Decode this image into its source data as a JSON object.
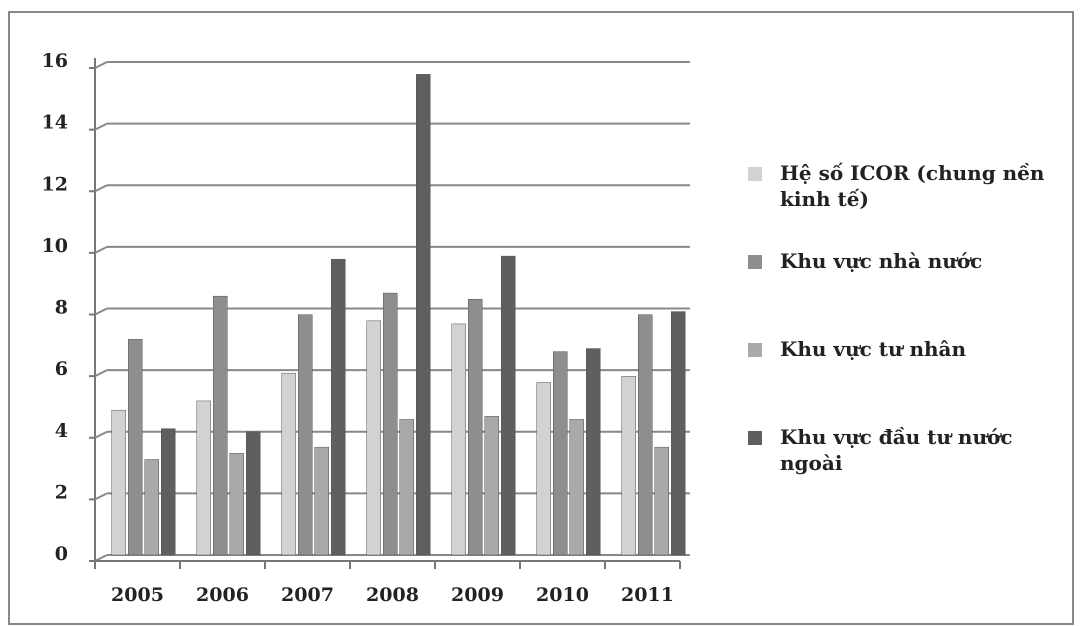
{
  "chart_data": {
    "type": "bar",
    "categories": [
      "2005",
      "2006",
      "2007",
      "2008",
      "2009",
      "2010",
      "2011"
    ],
    "series": [
      {
        "name": "Hệ số ICOR (chung nền kinh tế)",
        "color": "#d2d2d2",
        "values": [
          4.7,
          5.0,
          5.9,
          7.6,
          7.5,
          5.6,
          5.8
        ]
      },
      {
        "name": "Khu vực nhà nước",
        "color": "#8e8e8e",
        "values": [
          7.0,
          8.4,
          7.8,
          8.5,
          8.3,
          6.6,
          7.8
        ]
      },
      {
        "name": "Khu vực tư nhân",
        "color": "#a9a9a9",
        "values": [
          3.1,
          3.3,
          3.5,
          4.4,
          4.5,
          4.4,
          3.5
        ]
      },
      {
        "name": "Khu vực đầu tư nước ngoài",
        "color": "#5f5f5f",
        "values": [
          4.1,
          4.0,
          9.6,
          15.6,
          9.7,
          6.7,
          7.9
        ]
      }
    ],
    "ylim": [
      0,
      16
    ],
    "yticks": [
      0,
      2,
      4,
      6,
      8,
      10,
      12,
      14,
      16
    ],
    "grid": true,
    "legend": "right"
  }
}
